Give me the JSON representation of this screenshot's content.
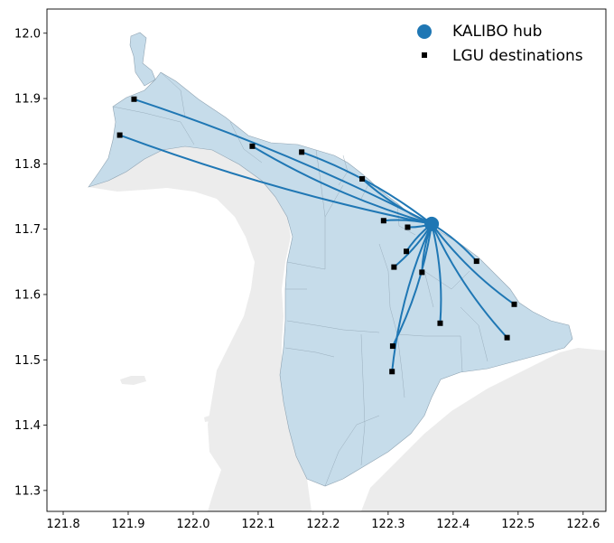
{
  "chart_data": {
    "type": "map",
    "title": "",
    "xlabel": "",
    "ylabel": "",
    "xlim": [
      121.775,
      122.635
    ],
    "ylim": [
      11.268,
      12.037
    ],
    "x_ticks": [
      "121.8",
      "121.9",
      "122.0",
      "122.1",
      "122.2",
      "122.3",
      "122.4",
      "122.5",
      "122.6"
    ],
    "y_ticks": [
      "11.3",
      "11.4",
      "11.5",
      "11.6",
      "11.7",
      "11.8",
      "11.9",
      "12.0"
    ],
    "legend": {
      "placement": "upper-right",
      "entries": [
        {
          "label": "KALIBO hub",
          "marker": "circle",
          "color": "#1f77b4"
        },
        {
          "label": "LGU destinations",
          "marker": "square",
          "color": "#000000"
        }
      ]
    },
    "hub": {
      "name": "KALIBO",
      "x": 122.367,
      "y": 11.708
    },
    "destinations": [
      {
        "x": 121.887,
        "y": 11.844
      },
      {
        "x": 121.909,
        "y": 11.899
      },
      {
        "x": 122.091,
        "y": 11.827
      },
      {
        "x": 122.167,
        "y": 11.818
      },
      {
        "x": 122.26,
        "y": 11.777
      },
      {
        "x": 122.293,
        "y": 11.713
      },
      {
        "x": 122.33,
        "y": 11.703
      },
      {
        "x": 122.328,
        "y": 11.666
      },
      {
        "x": 122.309,
        "y": 11.642
      },
      {
        "x": 122.352,
        "y": 11.634
      },
      {
        "x": 122.436,
        "y": 11.651
      },
      {
        "x": 122.494,
        "y": 11.585
      },
      {
        "x": 122.38,
        "y": 11.556
      },
      {
        "x": 122.483,
        "y": 11.534
      },
      {
        "x": 122.307,
        "y": 11.521
      },
      {
        "x": 122.306,
        "y": 11.482
      }
    ],
    "colors": {
      "province_fill": "#c6dcea",
      "province_edge": "#8fa3b2",
      "background_land": "#ececec",
      "route": "#1f77b4",
      "hub": "#1f77b4",
      "destination": "#000000"
    }
  }
}
